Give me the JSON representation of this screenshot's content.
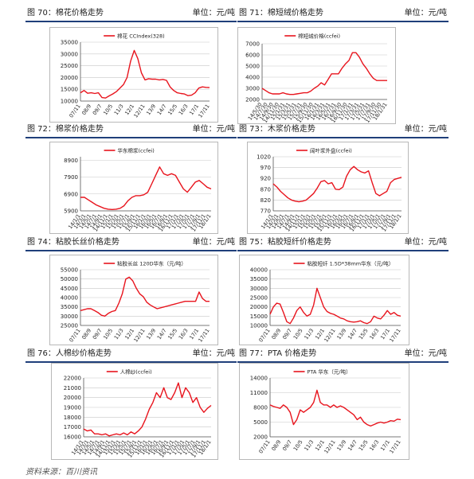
{
  "panels": [
    {
      "title": "图 70：棉花价格走势",
      "unit": "单位：元/吨"
    },
    {
      "title": "图 71：棉短绒价格走势",
      "unit": "单位：元/吨"
    },
    {
      "title": "图 72：棉浆价格走势",
      "unit": "单位：元/吨"
    },
    {
      "title": "图 73：木浆价格走势",
      "unit": "单位：元/吨"
    },
    {
      "title": "图 74：粘胶长丝价格走势",
      "unit": "单位：元/吨"
    },
    {
      "title": "图 75：粘胶短纤价格走势",
      "unit": "单位：元/吨"
    },
    {
      "title": "图 76：人棉纱价格走势",
      "unit": "单位：元/吨"
    },
    {
      "title": "图 77：PTA 价格走势",
      "unit": "单位：元/吨"
    }
  ],
  "source": "资料来源：百川资讯",
  "line_color": "#e8141d",
  "chart_data": [
    {
      "type": "line",
      "legend": "棉花 CCIndex(328)",
      "yticks": [
        10000,
        15000,
        20000,
        25000,
        30000,
        35000
      ],
      "ylim": [
        10000,
        35000
      ],
      "xticks": [
        "07/11",
        "08/9",
        "09/7",
        "10/5",
        "11/3",
        "12/1",
        "12/11",
        "13/9",
        "14/7",
        "15/5",
        "16/3",
        "17/1",
        "17/11"
      ],
      "series": [
        {
          "values": [
            13500,
            14500,
            13300,
            13500,
            13200,
            13500,
            11500,
            11300,
            12200,
            13000,
            14000,
            15500,
            17000,
            20000,
            27000,
            31500,
            28000,
            22000,
            19000,
            19500,
            19300,
            19300,
            19000,
            19200,
            18800,
            16000,
            14500,
            13500,
            13200,
            13000,
            12300,
            12500,
            13500,
            15500,
            16000,
            15800,
            15700
          ]
        }
      ]
    },
    {
      "type": "line",
      "legend": "棉短绒价格(ccfei)",
      "yticks": [
        2000,
        3000,
        4000,
        5000,
        6000,
        7000
      ],
      "ylim": [
        2000,
        7000
      ],
      "xticks": [
        "14/5/30",
        "14/7/30",
        "14/9/30",
        "14/11/30",
        "15/1/31",
        "15/3/31",
        "15/5/31",
        "15/7/31",
        "15/9/30",
        "15/11/30",
        "16/1/31",
        "16/3/31",
        "16/5/31",
        "16/7/31",
        "16/9/30",
        "16/11/30",
        "17/1/31",
        "17/3/31",
        "17/5/31",
        "17/7/31",
        "17/9/30",
        "17/11/30",
        "18/1/31"
      ],
      "series": [
        {
          "values": [
            3000,
            2800,
            2600,
            2500,
            2500,
            2500,
            2600,
            2500,
            2450,
            2450,
            2500,
            2550,
            2600,
            2600,
            2750,
            3000,
            3200,
            3500,
            3300,
            3800,
            4300,
            4300,
            4300,
            4800,
            5200,
            5500,
            6200,
            6200,
            5800,
            5200,
            4800,
            4300,
            3900,
            3700,
            3700,
            3700,
            3700
          ]
        }
      ]
    },
    {
      "type": "line",
      "legend": "华东棉浆(ccfei)",
      "yticks": [
        5900,
        6900,
        7900,
        8900
      ],
      "ylim": [
        5900,
        9100
      ],
      "xticks": [
        "14/1/1",
        "14/3/1",
        "14/5/1",
        "14/7/1",
        "14/9/1",
        "14/11/1",
        "15/1/1",
        "15/3/1",
        "15/5/1",
        "15/7/1",
        "15/9/1",
        "15/11/1",
        "16/1/1",
        "16/3/1",
        "16/5/1",
        "16/7/1",
        "16/9/1",
        "16/11/1",
        "17/1/1",
        "17/3/1",
        "17/5/1",
        "17/7/1",
        "17/9/1",
        "17/11/1",
        "18/1/1"
      ],
      "series": [
        {
          "values": [
            6700,
            6700,
            6550,
            6400,
            6250,
            6150,
            6050,
            6000,
            5980,
            6000,
            6050,
            6200,
            6500,
            6700,
            6800,
            6800,
            6850,
            7000,
            7500,
            8000,
            8500,
            8100,
            8000,
            8100,
            8000,
            7600,
            7200,
            7000,
            7300,
            7600,
            7700,
            7500,
            7300,
            7200
          ]
        }
      ]
    },
    {
      "type": "line",
      "legend": "阔叶浆外盘(ccfei)",
      "yticks": [
        770,
        820,
        870,
        920,
        970,
        1020
      ],
      "ylim": [
        770,
        1020
      ],
      "xticks": [
        "14/1/1",
        "14/3/1",
        "14/5/1",
        "14/7/1",
        "14/9/1",
        "14/11/1",
        "15/1/1",
        "15/3/1",
        "15/5/1",
        "15/7/1",
        "15/9/1",
        "15/11/1",
        "16/1/1",
        "16/3/1",
        "16/5/1",
        "16/7/1",
        "16/9/1",
        "16/11/1",
        "17/1/1",
        "17/3/1",
        "17/5/1",
        "17/7/1",
        "17/9/1",
        "17/11/1",
        "18/1/1"
      ],
      "series": [
        {
          "values": [
            895,
            880,
            860,
            845,
            830,
            820,
            815,
            812,
            815,
            820,
            835,
            850,
            875,
            905,
            910,
            895,
            900,
            870,
            868,
            880,
            930,
            960,
            975,
            960,
            950,
            945,
            955,
            900,
            850,
            840,
            850,
            860,
            900,
            915,
            920,
            925
          ]
        }
      ]
    },
    {
      "type": "line",
      "legend": "粘胶长丝 120D华东（元/吨）",
      "yticks": [
        25000,
        30000,
        35000,
        40000,
        45000,
        50000,
        55000
      ],
      "ylim": [
        25000,
        55000
      ],
      "xticks": [
        "07/11",
        "08/9",
        "09/7",
        "10/5",
        "11/3",
        "12/1",
        "12/11",
        "13/9",
        "14/7",
        "15/5",
        "16/3",
        "17/1",
        "17/11"
      ],
      "series": [
        {
          "values": [
            33000,
            33500,
            34000,
            34000,
            33000,
            32000,
            30500,
            30000,
            31500,
            32500,
            33000,
            37000,
            42000,
            50000,
            51000,
            49000,
            45000,
            42000,
            40500,
            37500,
            36000,
            35000,
            34000,
            34500,
            35000,
            35500,
            36000,
            36500,
            37000,
            37500,
            38000,
            38000,
            38000,
            38000,
            43000,
            39500,
            38000,
            38000
          ]
        }
      ]
    },
    {
      "type": "line",
      "legend": "粘胶短纤 1.5D*38mm华东（元/吨）",
      "yticks": [
        10000,
        15000,
        20000,
        25000,
        30000,
        35000,
        40000
      ],
      "ylim": [
        10000,
        40000
      ],
      "xticks": [
        "07/11",
        "08/9",
        "09/7",
        "10/5",
        "11/3",
        "12/1",
        "12/11",
        "13/9",
        "14/7",
        "15/5",
        "16/3",
        "17/1",
        "17/11"
      ],
      "series": [
        {
          "values": [
            16000,
            20000,
            22000,
            21500,
            17000,
            12000,
            11000,
            14000,
            18000,
            20000,
            17000,
            15000,
            16000,
            21000,
            30000,
            25000,
            20000,
            17500,
            16500,
            16000,
            15000,
            14000,
            13500,
            12500,
            12000,
            11800,
            12000,
            12500,
            11500,
            11000,
            12000,
            15000,
            14000,
            13500,
            15500,
            18000,
            16000,
            17000,
            15500,
            15000
          ]
        }
      ]
    },
    {
      "type": "line",
      "legend": "人棉纱(ccfei)",
      "yticks": [
        16000,
        17000,
        18000,
        19000,
        20000,
        21000,
        22000
      ],
      "ylim": [
        16000,
        22000
      ],
      "xticks": [
        "14/1/1",
        "14/3/1",
        "14/5/1",
        "14/7/1",
        "14/9/1",
        "14/11/1",
        "15/1/1",
        "15/3/1",
        "15/5/1",
        "15/7/1",
        "15/9/1",
        "15/11/1",
        "16/1/1",
        "16/3/1",
        "16/5/1",
        "16/7/1",
        "16/9/1",
        "16/11/1",
        "17/1/1",
        "17/3/1",
        "17/5/1",
        "17/7/1",
        "17/9/1",
        "17/11/1",
        "18/1/1"
      ],
      "series": [
        {
          "values": [
            16800,
            16600,
            16700,
            16300,
            16300,
            16200,
            16300,
            16100,
            16200,
            16300,
            16200,
            16400,
            16200,
            16500,
            16300,
            16600,
            17000,
            17800,
            18800,
            19500,
            20500,
            20000,
            21000,
            20000,
            19800,
            20500,
            21500,
            20000,
            21000,
            20500,
            19500,
            20000,
            19000,
            18500,
            18900,
            19200
          ]
        }
      ]
    },
    {
      "type": "line",
      "legend": "PTA 华东（元/吨）",
      "yticks": [
        2000,
        5000,
        8000,
        11000,
        14000
      ],
      "ylim": [
        2000,
        14000
      ],
      "xticks": [
        "07/11",
        "08/9",
        "09/7",
        "10/5",
        "11/3",
        "12/1",
        "12/11",
        "13/9",
        "14/7",
        "15/5",
        "16/3",
        "17/1",
        "17/11"
      ],
      "series": [
        {
          "values": [
            8500,
            8200,
            8000,
            7800,
            8500,
            8000,
            7000,
            4500,
            5500,
            7500,
            7000,
            7500,
            8000,
            9000,
            11500,
            9000,
            8500,
            8500,
            8000,
            8500,
            8000,
            8300,
            8000,
            7500,
            7000,
            6500,
            5500,
            6000,
            5000,
            4500,
            4200,
            4500,
            4800,
            5000,
            4800,
            5000,
            5300,
            5200,
            5600,
            5500
          ]
        }
      ]
    }
  ]
}
